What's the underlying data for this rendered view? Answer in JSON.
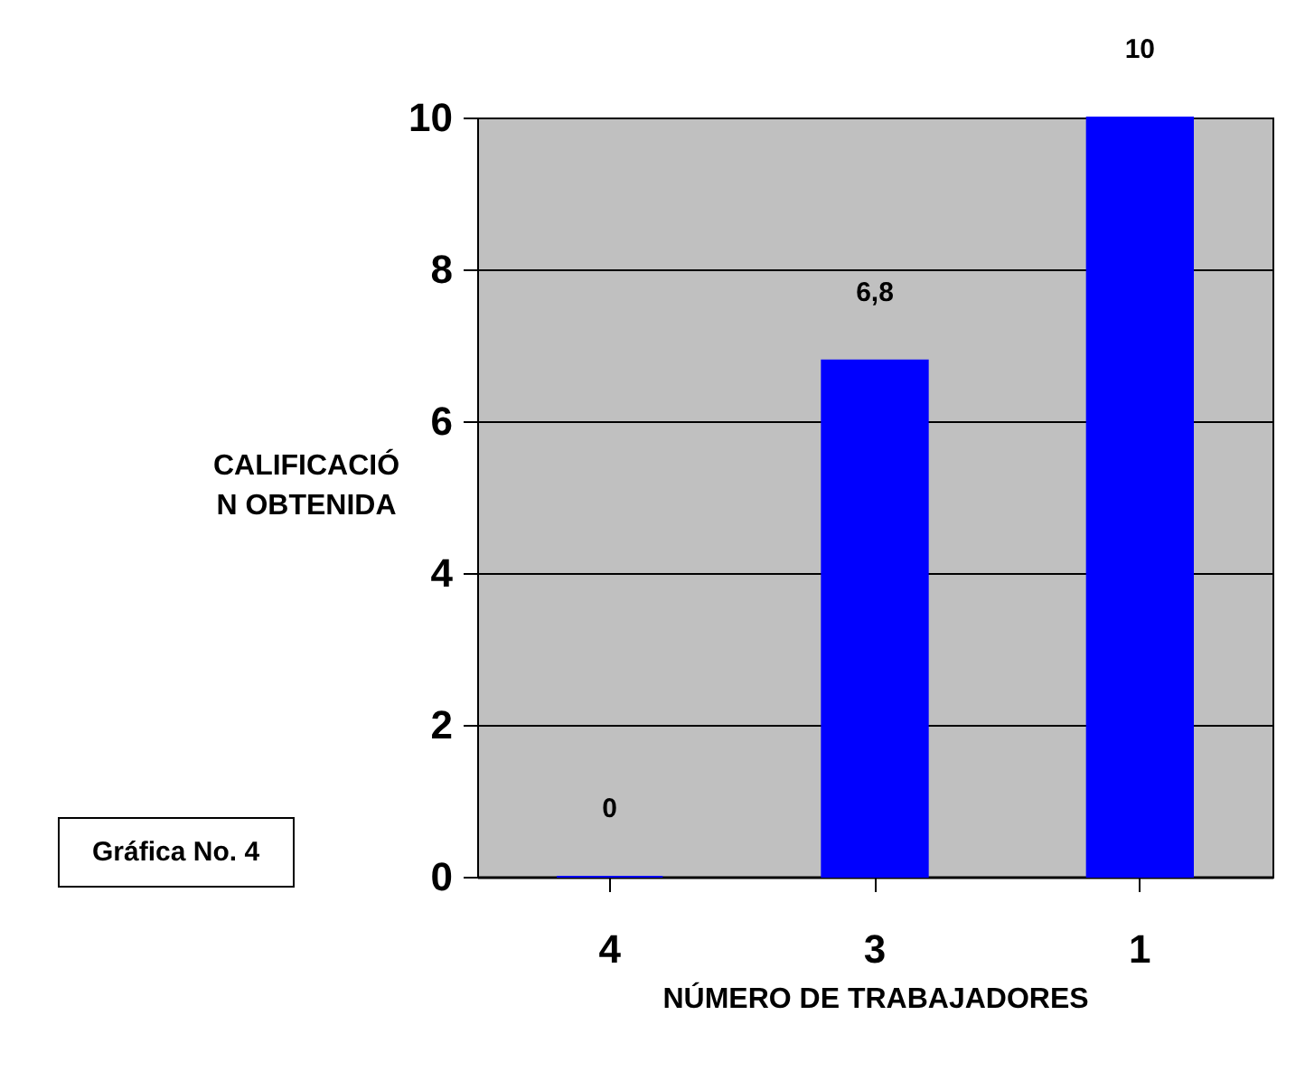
{
  "chart_data": {
    "type": "bar",
    "xlabel": "NÚMERO DE TRABAJADORES",
    "ylabel": "CALIFICACIÓN OBTENIDA",
    "categories": [
      "4",
      "3",
      "1"
    ],
    "values": [
      0,
      6.8,
      10
    ],
    "value_labels": [
      "0",
      "6,8",
      "10"
    ],
    "color": "#0000ff",
    "ylim": [
      0,
      10
    ],
    "yticks": [
      0,
      2,
      4,
      6,
      8,
      10
    ],
    "grid": "y",
    "annotations": [
      "Gráfica No. 4"
    ]
  }
}
